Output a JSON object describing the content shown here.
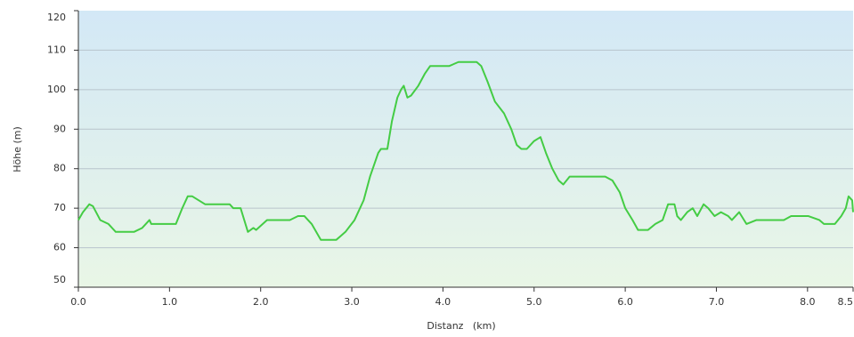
{
  "chart_data": {
    "type": "line",
    "xlabel": "Distanz   (km)",
    "ylabel": "Höhe (m)",
    "color": "#44cc44",
    "grid": true,
    "xlim": [
      0,
      8.5
    ],
    "xticks": [
      {
        "value": 0,
        "label": "0.0"
      },
      {
        "value": 1,
        "label": "1.0"
      },
      {
        "value": 2,
        "label": "2.0"
      },
      {
        "value": 3,
        "label": "3.0"
      },
      {
        "value": 4,
        "label": "4.0"
      },
      {
        "value": 5,
        "label": "5.0"
      },
      {
        "value": 6,
        "label": "6.0"
      },
      {
        "value": 7,
        "label": "7.0"
      },
      {
        "value": 8,
        "label": "8.0"
      },
      {
        "value": 8.5,
        "label": "8.5"
      }
    ],
    "ylim": [
      50,
      120
    ],
    "yticks": [
      50,
      60,
      70,
      80,
      90,
      100,
      110,
      120
    ],
    "x": [
      0,
      0.05,
      0.12,
      0.16,
      0.24,
      0.33,
      0.41,
      0.61,
      0.7,
      0.78,
      0.8,
      1.07,
      1.14,
      1.2,
      1.25,
      1.39,
      1.66,
      1.7,
      1.78,
      1.86,
      1.92,
      1.95,
      2.07,
      2.32,
      2.41,
      2.48,
      2.56,
      2.66,
      2.83,
      2.93,
      3.03,
      3.13,
      3.2,
      3.29,
      3.32,
      3.39,
      3.44,
      3.5,
      3.54,
      3.57,
      3.61,
      3.65,
      3.73,
      3.8,
      3.86,
      4.07,
      4.17,
      4.37,
      4.42,
      4.49,
      4.57,
      4.67,
      4.75,
      4.81,
      4.86,
      4.92,
      5.0,
      5.07,
      5.13,
      5.2,
      5.27,
      5.32,
      5.39,
      5.59,
      5.78,
      5.86,
      5.94,
      6.0,
      6.08,
      6.14,
      6.25,
      6.33,
      6.41,
      6.47,
      6.54,
      6.57,
      6.61,
      6.68,
      6.74,
      6.79,
      6.86,
      6.91,
      6.98,
      7.05,
      7.13,
      7.17,
      7.25,
      7.33,
      7.44,
      7.74,
      7.82,
      8.01,
      8.13,
      8.18,
      8.3,
      8.37,
      8.42,
      8.45,
      8.49,
      8.5
    ],
    "values": [
      67,
      69,
      71,
      70.5,
      67,
      66,
      64,
      64,
      65,
      67,
      66,
      66,
      70,
      73,
      73,
      71,
      71,
      70,
      70,
      64,
      65,
      64.5,
      67,
      67,
      68,
      68,
      66,
      62,
      62,
      64,
      67,
      72,
      78,
      84,
      85,
      85,
      92,
      98,
      100,
      101,
      98,
      98.5,
      101,
      104,
      106,
      106,
      107,
      107,
      106,
      102,
      97,
      94,
      90,
      86,
      85,
      85,
      87,
      88,
      84,
      80,
      77,
      76,
      78,
      78,
      78,
      77,
      74,
      70,
      67,
      64.5,
      64.5,
      66,
      67,
      71,
      71,
      68,
      67,
      69,
      70,
      68,
      71,
      70,
      68,
      69,
      68,
      67,
      69,
      66,
      67,
      67,
      68,
      68,
      67,
      66,
      66,
      68,
      70,
      73,
      72,
      69
    ]
  }
}
